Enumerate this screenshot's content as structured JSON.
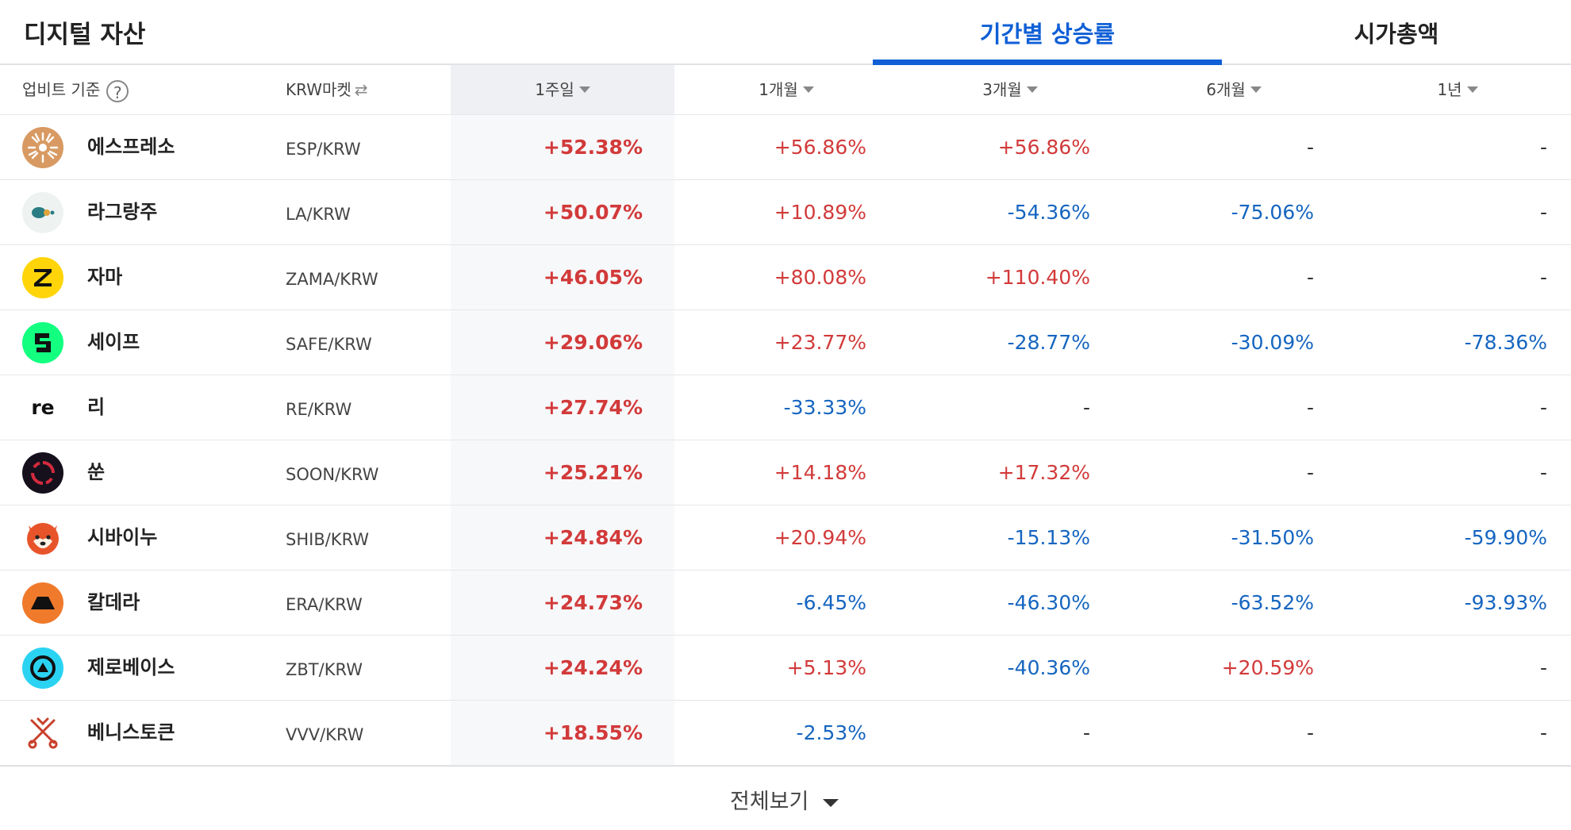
{
  "header": {
    "title": "디지털 자산",
    "tabs": [
      {
        "label": "기간별 상승률",
        "active": true
      },
      {
        "label": "시가총액",
        "active": false
      }
    ]
  },
  "columns": {
    "basis": "업비트 기준",
    "help": "?",
    "market": "KRW마켓",
    "market_swap_icon": "⇄",
    "periods": [
      "1주일",
      "1개월",
      "3개월",
      "6개월",
      "1년"
    ]
  },
  "colors": {
    "up": "#d23a3a",
    "down": "#1565c0",
    "accent": "#0f5fd6"
  },
  "rows": [
    {
      "name": "에스프레소",
      "pair": "ESP/KRW",
      "icon": "espresso-icon",
      "w1": "+52.38%",
      "m1": "+56.86%",
      "m3": "+56.86%",
      "m6": "-",
      "y1": "-"
    },
    {
      "name": "라그랑주",
      "pair": "LA/KRW",
      "icon": "lagrange-icon",
      "w1": "+50.07%",
      "m1": "+10.89%",
      "m3": "-54.36%",
      "m6": "-75.06%",
      "y1": "-"
    },
    {
      "name": "자마",
      "pair": "ZAMA/KRW",
      "icon": "zama-icon",
      "w1": "+46.05%",
      "m1": "+80.08%",
      "m3": "+110.40%",
      "m6": "-",
      "y1": "-"
    },
    {
      "name": "세이프",
      "pair": "SAFE/KRW",
      "icon": "safe-icon",
      "w1": "+29.06%",
      "m1": "+23.77%",
      "m3": "-28.77%",
      "m6": "-30.09%",
      "y1": "-78.36%"
    },
    {
      "name": "리",
      "pair": "RE/KRW",
      "icon": "re-icon",
      "logo_text": "re",
      "w1": "+27.74%",
      "m1": "-33.33%",
      "m3": "-",
      "m6": "-",
      "y1": "-"
    },
    {
      "name": "쑨",
      "pair": "SOON/KRW",
      "icon": "soon-icon",
      "w1": "+25.21%",
      "m1": "+14.18%",
      "m3": "+17.32%",
      "m6": "-",
      "y1": "-"
    },
    {
      "name": "시바이누",
      "pair": "SHIB/KRW",
      "icon": "shiba-inu-icon",
      "w1": "+24.84%",
      "m1": "+20.94%",
      "m3": "-15.13%",
      "m6": "-31.50%",
      "y1": "-59.90%"
    },
    {
      "name": "칼데라",
      "pair": "ERA/KRW",
      "icon": "caldera-icon",
      "w1": "+24.73%",
      "m1": "-6.45%",
      "m3": "-46.30%",
      "m6": "-63.52%",
      "y1": "-93.93%"
    },
    {
      "name": "제로베이스",
      "pair": "ZBT/KRW",
      "icon": "zerobase-icon",
      "w1": "+24.24%",
      "m1": "+5.13%",
      "m3": "-40.36%",
      "m6": "+20.59%",
      "y1": "-"
    },
    {
      "name": "베니스토큰",
      "pair": "VVV/KRW",
      "icon": "venice-token-icon",
      "w1": "+18.55%",
      "m1": "-2.53%",
      "m3": "-",
      "m6": "-",
      "y1": "-"
    }
  ],
  "footer": {
    "more_label": "전체보기"
  }
}
